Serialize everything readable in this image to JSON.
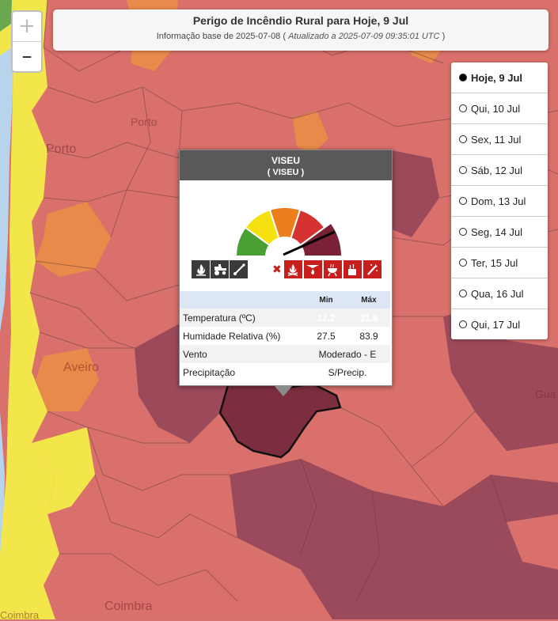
{
  "title": "Perigo de Incêndio Rural para Hoje, 9 Jul",
  "subtitle_prefix": "Informação base de 2025-07-08 (",
  "subtitle_italic": "Atualizado a 2025-07-09 09:35:01 UTC",
  "subtitle_suffix": ")",
  "zoom": {
    "in_label": "+",
    "out_label": "–"
  },
  "days": [
    {
      "label": "Hoje, 9 Jul",
      "selected": true
    },
    {
      "label": "Qui, 10 Jul",
      "selected": false
    },
    {
      "label": "Sex, 11 Jul",
      "selected": false
    },
    {
      "label": "Sáb, 12 Jul",
      "selected": false
    },
    {
      "label": "Dom, 13 Jul",
      "selected": false
    },
    {
      "label": "Seg, 14 Jul",
      "selected": false
    },
    {
      "label": "Ter, 15 Jul",
      "selected": false
    },
    {
      "label": "Qua, 16 Jul",
      "selected": false
    },
    {
      "label": "Qui, 17 Jul",
      "selected": false
    }
  ],
  "map_labels": {
    "porto": "Porto",
    "porto_district": "Porto",
    "aveiro": "Aveiro",
    "coimbra": "Coimbra",
    "coimbra2": "Coimbra",
    "guarda": "Gua"
  },
  "popup": {
    "name": "VISEU",
    "district": "( VISEU )",
    "danger_level": "Máximo",
    "gauge_colors": [
      "#4aa032",
      "#f5e10f",
      "#ec7f1c",
      "#d63232",
      "#7a2136"
    ],
    "table": {
      "col_min": "Min",
      "col_max": "Máx",
      "temperature_label": "Temperatura (ºC)",
      "temp_min": "17.2",
      "temp_max": "31.6",
      "humidity_label": "Humidade Relativa (%)",
      "hum_min": "27.5",
      "hum_max": "83.9",
      "wind_label": "Vento",
      "wind_value": "Moderado - E",
      "precip_label": "Precipitação",
      "precip_value": "S/Precip."
    }
  },
  "colors": {
    "yellow": "#f5e64a",
    "orange": "#e88a4a",
    "red": "#d96a6a",
    "darkred": "#9a4a5a",
    "water": "#b8d4ec"
  }
}
